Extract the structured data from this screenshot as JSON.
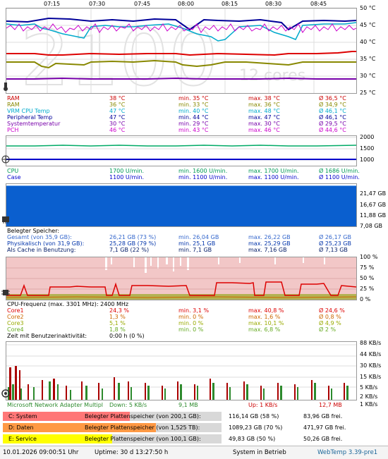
{
  "time_axis": [
    "07:15",
    "07:30",
    "07:45",
    "08:00",
    "08:15",
    "08:30",
    "08:45"
  ],
  "temp_panel": {
    "y_ticks": [
      "50 °C",
      "45 °C",
      "40 °C",
      "35 °C",
      "30 °C",
      "25 °C"
    ],
    "watermark_big": "2100",
    "watermark_small": "12 cores",
    "rows": [
      {
        "name": "RAM",
        "cur": "38 °C",
        "min": "min. 35 °C",
        "max": "max. 38 °C",
        "avg": "Ø 36,5 °C",
        "color": "#cc0000"
      },
      {
        "name": "RAM",
        "cur": "36 °C",
        "min": "min. 33 °C",
        "max": "max. 36 °C",
        "avg": "Ø 34,9 °C",
        "color": "#888800"
      },
      {
        "name": "VRM CPU Temp",
        "cur": "47 °C",
        "min": "min. 40 °C",
        "max": "max. 48 °C",
        "avg": "Ø 46,1 °C",
        "color": "#00aacc"
      },
      {
        "name": "Peripheral Temp",
        "cur": "47 °C",
        "min": "min. 44 °C",
        "max": "max. 47 °C",
        "avg": "Ø 46,1 °C",
        "color": "#000099"
      },
      {
        "name": "Systemtemperatur",
        "cur": "30 °C",
        "min": "min. 29 °C",
        "max": "max. 30 °C",
        "avg": "Ø 29,5 °C",
        "color": "#7700aa"
      },
      {
        "name": "PCH",
        "cur": "46 °C",
        "min": "min. 43 °C",
        "max": "max. 46 °C",
        "avg": "Ø 44,6 °C",
        "color": "#cc00cc"
      }
    ]
  },
  "fan_panel": {
    "y_ticks": [
      "2000",
      "1500",
      "1000"
    ],
    "rows": [
      {
        "name": "CPU",
        "cur": "1700 U/min.",
        "min": "min. 1600 U/min.",
        "max": "max. 1700 U/min.",
        "avg": "Ø 1686 U/min.",
        "color": "#009955"
      },
      {
        "name": "Case",
        "cur": "1100 U/min.",
        "min": "min. 1100 U/min.",
        "max": "max. 1100 U/min.",
        "avg": "Ø 1100 U/min.",
        "color": "#0000cc"
      }
    ]
  },
  "mem_panel": {
    "y_ticks": [
      "21,47 GB",
      "16,67 GB",
      "11,88 GB",
      "7,08 GB"
    ],
    "header": "Belegter Speicher:",
    "rows": [
      {
        "name": "Gesamt (von 35,9 GB):",
        "cur": "26,21 GB (73 %)",
        "min": "min. 26,04 GB",
        "max": "max. 26,22 GB",
        "avg": "Ø 26,17 GB",
        "color": "#3366cc"
      },
      {
        "name": "Physikalisch (von 31,9 GB):",
        "cur": "25,28 GB (79 %)",
        "min": "min. 25,1 GB",
        "max": "max. 25,29 GB",
        "avg": "Ø 25,23 GB",
        "color": "#0033aa"
      },
      {
        "name": "Als Cache in Benutzung:",
        "cur": "7,1 GB (22 %)",
        "min": "min. 7,1 GB",
        "max": "max. 7,16 GB",
        "avg": "Ø 7,13 GB",
        "color": "#001a66"
      }
    ]
  },
  "cpu_panel": {
    "y_ticks": [
      "100 %",
      "75 %",
      "50 %",
      "25 %",
      "0 %"
    ],
    "header_label": "CPU-Frequenz (max. 3301 MHz): 2400 MHz",
    "rows": [
      {
        "name": "Core1",
        "cur": "24,3 %",
        "min": "min. 3,1 %",
        "max": "max. 40,8 %",
        "avg": "Ø 24,6 %",
        "color": "#dd0000"
      },
      {
        "name": "Core2",
        "cur": "1,3 %",
        "min": "min. 0 %",
        "max": "max. 1,6 %",
        "avg": "Ø 0,8 %",
        "color": "#cc6600"
      },
      {
        "name": "Core3",
        "cur": "5,1 %",
        "min": "min. 0 %",
        "max": "max. 10,1 %",
        "avg": "Ø 4,9 %",
        "color": "#99aa00"
      },
      {
        "name": "Core4",
        "cur": "1,8 %",
        "min": "min. 0 %",
        "max": "max. 6,8 %",
        "avg": "Ø 2 %",
        "color": "#66aa22"
      }
    ],
    "idle_label": "Zeit mit Benutzerinaktivität:",
    "idle_value": "0:00 h (0 %)"
  },
  "net_panel": {
    "y_ticks": [
      "88 KB/s",
      "44 KB/s",
      "30 KB/s",
      "15 KB/s",
      "5 KB/s",
      "2 KB/s",
      "1 KB/s"
    ],
    "adapter": "Microsoft Network Adapter Multipl",
    "down": "Down: 5 KB/s",
    "down_total": "9,1 MB",
    "up": "Up: 1 KB/s",
    "up_total": "12,7 MB"
  },
  "disks": [
    {
      "label": "C: System",
      "desc": "Belegter Plattenspeicher (von 200,1 GB):",
      "used": "116,14 GB (58 %)",
      "free": "83,96 GB frei.",
      "percent": 58,
      "color": "#ff7777"
    },
    {
      "label": "D: Daten",
      "desc": "Belegter Plattenspeicher (von 1,525 TB):",
      "used": "1089,23 GB (70 %)",
      "free": "471,97 GB frei.",
      "percent": 70,
      "color": "#ff9944"
    },
    {
      "label": "E: Service",
      "desc": "Belegter Plattenspeicher (von 100,1 GB):",
      "used": "49,83 GB (50 %)",
      "free": "50,26 GB frei.",
      "percent": 50,
      "color": "#ffff00"
    }
  ],
  "footer": {
    "datetime": "10.01.2026 09:00:51 Uhr",
    "uptime": "Uptime: 30 d 13:27:50 h",
    "status": "System in Betrieb",
    "version": "WebTemp 3.39-pre1"
  }
}
